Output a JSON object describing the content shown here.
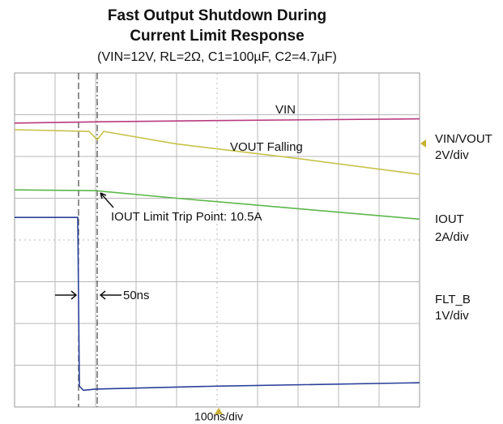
{
  "chart_data": {
    "type": "scope",
    "title": [
      "Fast Output Shutdown During",
      "Current Limit Response"
    ],
    "subtitle": "(VIN=12V, RL=2Ω, C1=100µF, C2=4.7µF)",
    "xlabel": "100ns/div",
    "xlim": [
      0,
      10
    ],
    "ylim": [
      0,
      8
    ],
    "grid": true,
    "annotations": {
      "trip": "IOUT Limit Trip Point: 10.5A",
      "delay": "50ns"
    },
    "channels": [
      {
        "name": "VIN/VOUT",
        "scale": "2V/div"
      },
      {
        "name": "IOUT",
        "scale": "2A/div"
      },
      {
        "name": "FLT_B",
        "scale": "1V/div"
      }
    ],
    "series": [
      {
        "name": "VIN",
        "color": "#b83a80",
        "x": [
          0,
          2,
          5,
          10
        ],
        "values": [
          6.8,
          6.83,
          6.86,
          6.9
        ]
      },
      {
        "name": "VOUT Falling",
        "color": "#c8c24a",
        "x": [
          0,
          1.84,
          2.04,
          2.2,
          4,
          7,
          10
        ],
        "values": [
          6.64,
          6.6,
          6.4,
          6.6,
          6.3,
          5.95,
          5.57
        ]
      },
      {
        "name": "IOUT",
        "color": "#5cb84a",
        "x": [
          0,
          2,
          4,
          7,
          10
        ],
        "values": [
          5.2,
          5.18,
          5.0,
          4.75,
          4.5
        ]
      },
      {
        "name": "FLT_B",
        "color": "#2a3f9a",
        "x": [
          0,
          1.56,
          1.6,
          1.7,
          2,
          5,
          10
        ],
        "values": [
          4.54,
          4.54,
          0.5,
          0.4,
          0.43,
          0.5,
          0.58
        ]
      }
    ]
  }
}
